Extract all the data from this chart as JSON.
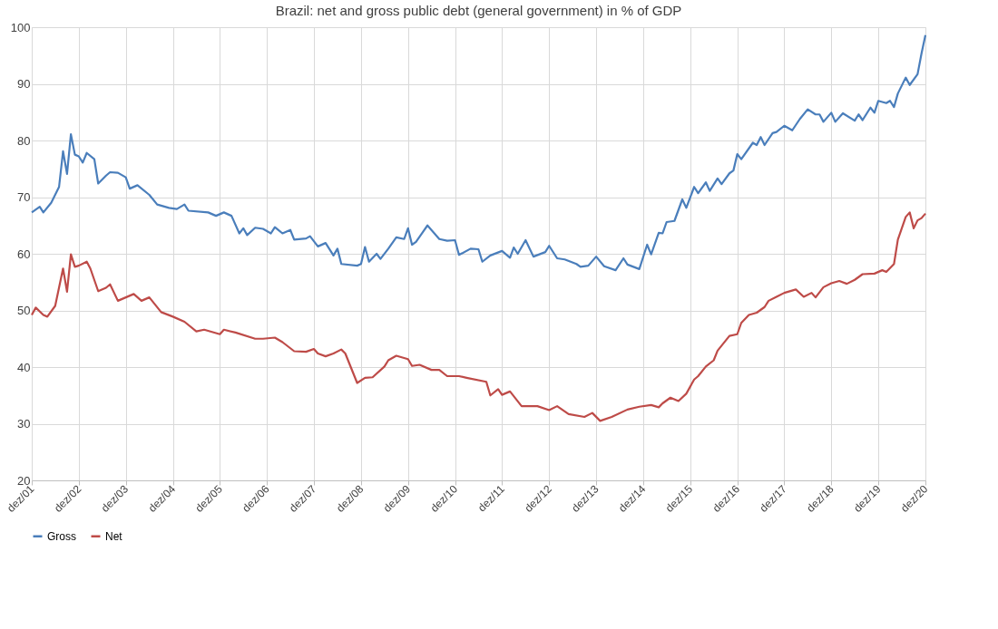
{
  "chart_data": {
    "type": "line",
    "title": "Brazil: net and gross public debt (general government) in % of GDP",
    "ylim": [
      20,
      100
    ],
    "yticks": [
      20,
      30,
      40,
      50,
      60,
      70,
      80,
      90,
      100
    ],
    "xlim": [
      "2001-12",
      "2020-12"
    ],
    "xticks": [
      {
        "value": "2001-12",
        "label": "dez/01"
      },
      {
        "value": "2002-12",
        "label": "dez/02"
      },
      {
        "value": "2003-12",
        "label": "dez/03"
      },
      {
        "value": "2004-12",
        "label": "dez/04"
      },
      {
        "value": "2005-12",
        "label": "dez/05"
      },
      {
        "value": "2006-12",
        "label": "dez/06"
      },
      {
        "value": "2007-12",
        "label": "dez/07"
      },
      {
        "value": "2008-12",
        "label": "dez/08"
      },
      {
        "value": "2009-12",
        "label": "dez/09"
      },
      {
        "value": "2010-12",
        "label": "dez/10"
      },
      {
        "value": "2011-12",
        "label": "dez/11"
      },
      {
        "value": "2012-12",
        "label": "dez/12"
      },
      {
        "value": "2013-12",
        "label": "dez/13"
      },
      {
        "value": "2014-12",
        "label": "dez/14"
      },
      {
        "value": "2015-12",
        "label": "dez/15"
      },
      {
        "value": "2016-12",
        "label": "dez/16"
      },
      {
        "value": "2017-12",
        "label": "dez/17"
      },
      {
        "value": "2018-12",
        "label": "dez/18"
      },
      {
        "value": "2019-12",
        "label": "dez/19"
      },
      {
        "value": "2020-12",
        "label": "dez/20"
      }
    ],
    "grid": true,
    "legend": "bottom",
    "marker": "none",
    "line_style": "solid",
    "series": [
      {
        "name": "Gross",
        "color": "#4a7ebb",
        "x": [
          "2001-12",
          "2002-02",
          "2002-03",
          "2002-05",
          "2002-07",
          "2002-08",
          "2002-09",
          "2002-10",
          "2002-11",
          "2002-12",
          "2003-01",
          "2003-02",
          "2003-04",
          "2003-05",
          "2003-07",
          "2003-08",
          "2003-10",
          "2003-12",
          "2004-01",
          "2004-03",
          "2004-06",
          "2004-08",
          "2004-11",
          "2005-01",
          "2005-03",
          "2005-04",
          "2005-09",
          "2005-11",
          "2006-01",
          "2006-03",
          "2006-05",
          "2006-06",
          "2006-07",
          "2006-09",
          "2006-11",
          "2007-01",
          "2007-02",
          "2007-04",
          "2007-06",
          "2007-07",
          "2007-10",
          "2007-11",
          "2008-01",
          "2008-03",
          "2008-05",
          "2008-06",
          "2008-07",
          "2008-11",
          "2008-12",
          "2009-01",
          "2009-02",
          "2009-04",
          "2009-05",
          "2009-07",
          "2009-09",
          "2009-11",
          "2009-12",
          "2010-01",
          "2010-02",
          "2010-05",
          "2010-08",
          "2010-10",
          "2010-12",
          "2011-01",
          "2011-04",
          "2011-06",
          "2011-07",
          "2011-09",
          "2011-12",
          "2012-02",
          "2012-03",
          "2012-04",
          "2012-06",
          "2012-08",
          "2012-11",
          "2012-12",
          "2013-02",
          "2013-04",
          "2013-07",
          "2013-08",
          "2013-10",
          "2013-12",
          "2014-02",
          "2014-05",
          "2014-07",
          "2014-08",
          "2014-11",
          "2015-01",
          "2015-02",
          "2015-04",
          "2015-05",
          "2015-06",
          "2015-08",
          "2015-10",
          "2015-11",
          "2016-01",
          "2016-02",
          "2016-04",
          "2016-05",
          "2016-07",
          "2016-08",
          "2016-10",
          "2016-11",
          "2016-12",
          "2017-01",
          "2017-04",
          "2017-05",
          "2017-06",
          "2017-07",
          "2017-09",
          "2017-10",
          "2017-12",
          "2018-02",
          "2018-04",
          "2018-06",
          "2018-08",
          "2018-09",
          "2018-10",
          "2018-12",
          "2019-01",
          "2019-03",
          "2019-06",
          "2019-07",
          "2019-08",
          "2019-10",
          "2019-11",
          "2019-12",
          "2020-02",
          "2020-03",
          "2020-04",
          "2020-05",
          "2020-07",
          "2020-08",
          "2020-10",
          "2020-11",
          "2020-12"
        ],
        "values": [
          67.3,
          68.3,
          67.3,
          69.0,
          71.8,
          78.1,
          74.1,
          81.1,
          77.5,
          77.2,
          76.1,
          77.8,
          76.7,
          72.4,
          73.8,
          74.4,
          74.3,
          73.5,
          71.5,
          72.1,
          70.4,
          68.7,
          68.1,
          67.9,
          68.7,
          67.6,
          67.3,
          66.7,
          67.3,
          66.7,
          63.6,
          64.5,
          63.3,
          64.6,
          64.4,
          63.6,
          64.7,
          63.6,
          64.2,
          62.5,
          62.7,
          63.1,
          61.3,
          61.9,
          59.7,
          60.9,
          58.2,
          57.9,
          58.2,
          61.2,
          58.6,
          60.0,
          59.1,
          60.9,
          62.9,
          62.6,
          64.5,
          61.6,
          62.1,
          65.0,
          62.6,
          62.3,
          62.4,
          59.8,
          60.9,
          60.8,
          58.6,
          59.7,
          60.5,
          59.3,
          61.1,
          60.0,
          62.4,
          59.5,
          60.3,
          61.4,
          59.2,
          59.0,
          58.2,
          57.7,
          57.9,
          59.5,
          57.8,
          57.1,
          59.2,
          58.1,
          57.3,
          61.6,
          59.9,
          63.7,
          63.6,
          65.6,
          65.8,
          69.6,
          68.1,
          71.8,
          70.7,
          72.6,
          71.1,
          73.3,
          72.3,
          74.2,
          74.7,
          77.6,
          76.7,
          79.6,
          79.2,
          80.6,
          79.2,
          81.3,
          81.5,
          82.6,
          81.8,
          83.8,
          85.5,
          84.6,
          84.6,
          83.3,
          84.9,
          83.3,
          84.8,
          83.5,
          84.6,
          83.6,
          85.8,
          84.9,
          87.0,
          86.6,
          87.0,
          85.9,
          88.3,
          91.1,
          89.8,
          91.7,
          95.4,
          98.6
        ]
      },
      {
        "name": "Net",
        "color": "#be4b48",
        "x": [
          "2001-12",
          "2002-01",
          "2002-03",
          "2002-04",
          "2002-06",
          "2002-08",
          "2002-09",
          "2002-10",
          "2002-11",
          "2002-12",
          "2003-02",
          "2003-03",
          "2003-05",
          "2003-07",
          "2003-08",
          "2003-10",
          "2003-12",
          "2004-02",
          "2004-04",
          "2004-06",
          "2004-09",
          "2004-12",
          "2005-03",
          "2005-06",
          "2005-08",
          "2005-12",
          "2006-01",
          "2006-04",
          "2006-09",
          "2006-11",
          "2007-02",
          "2007-04",
          "2007-07",
          "2007-10",
          "2007-12",
          "2008-01",
          "2008-03",
          "2008-05",
          "2008-07",
          "2008-08",
          "2008-11",
          "2009-01",
          "2009-03",
          "2009-06",
          "2009-07",
          "2009-09",
          "2009-12",
          "2010-01",
          "2010-03",
          "2010-06",
          "2010-08",
          "2010-10",
          "2011-01",
          "2011-03",
          "2011-08",
          "2011-09",
          "2011-11",
          "2011-12",
          "2012-02",
          "2012-05",
          "2012-09",
          "2012-12",
          "2013-02",
          "2013-05",
          "2013-09",
          "2013-11",
          "2014-01",
          "2014-04",
          "2014-08",
          "2014-11",
          "2015-02",
          "2015-04",
          "2015-05",
          "2015-07",
          "2015-09",
          "2015-11",
          "2016-01",
          "2016-02",
          "2016-04",
          "2016-06",
          "2016-07",
          "2016-10",
          "2016-12",
          "2017-01",
          "2017-03",
          "2017-05",
          "2017-07",
          "2017-08",
          "2017-10",
          "2017-12",
          "2018-03",
          "2018-05",
          "2018-07",
          "2018-08",
          "2018-10",
          "2018-12",
          "2019-02",
          "2019-04",
          "2019-06",
          "2019-08",
          "2019-11",
          "2020-01",
          "2020-02",
          "2020-04",
          "2020-05",
          "2020-07",
          "2020-08",
          "2020-09",
          "2020-10",
          "2020-11",
          "2020-12"
        ],
        "values": [
          49.2,
          50.5,
          49.2,
          48.9,
          50.8,
          57.4,
          53.3,
          59.9,
          57.7,
          57.9,
          58.6,
          57.4,
          53.4,
          54.0,
          54.6,
          51.7,
          52.3,
          52.9,
          51.7,
          52.3,
          49.7,
          48.9,
          48.0,
          46.3,
          46.6,
          45.8,
          46.6,
          46.1,
          45.0,
          45.0,
          45.2,
          44.4,
          42.8,
          42.7,
          43.2,
          42.4,
          41.9,
          42.4,
          43.1,
          42.4,
          37.2,
          38.1,
          38.2,
          40.1,
          41.2,
          42.0,
          41.4,
          40.2,
          40.4,
          39.5,
          39.5,
          38.4,
          38.4,
          38.1,
          37.4,
          35.0,
          36.1,
          35.1,
          35.7,
          33.1,
          33.1,
          32.4,
          33.1,
          31.7,
          31.2,
          31.9,
          30.5,
          31.2,
          32.5,
          33.0,
          33.3,
          32.9,
          33.6,
          34.6,
          34.0,
          35.3,
          37.8,
          38.4,
          40.1,
          41.2,
          42.9,
          45.5,
          45.8,
          47.8,
          49.2,
          49.6,
          50.6,
          51.7,
          52.4,
          53.1,
          53.7,
          52.4,
          53.1,
          52.3,
          54.1,
          54.8,
          55.2,
          54.7,
          55.4,
          56.4,
          56.5,
          57.1,
          56.8,
          58.2,
          62.5,
          66.5,
          67.3,
          64.5,
          65.9,
          66.3,
          67.1
        ]
      }
    ]
  }
}
